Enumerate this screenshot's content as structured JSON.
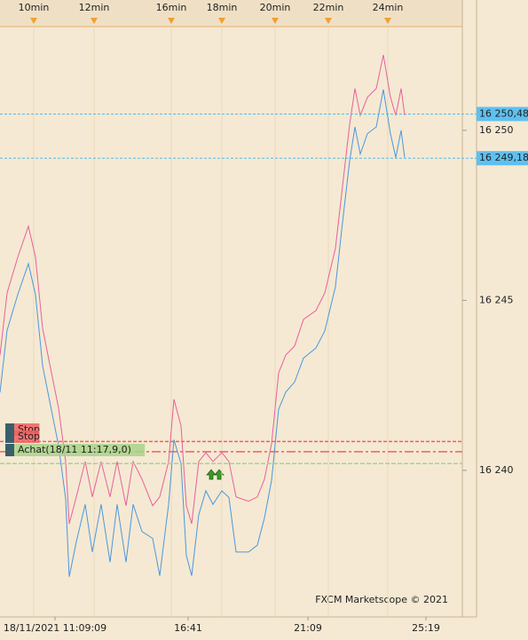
{
  "chart_data": {
    "type": "line",
    "watermark": "FXCM Marketscope © 2021",
    "x": [
      0,
      8,
      20,
      32,
      40,
      48,
      56,
      66,
      74,
      78,
      86,
      96,
      104,
      114,
      124,
      132,
      142,
      150,
      160,
      172,
      180,
      190,
      196,
      204,
      210,
      216,
      224,
      232,
      240,
      250,
      258,
      266,
      280,
      290,
      298,
      306,
      314,
      322,
      332,
      342,
      356,
      366,
      378,
      386,
      394,
      400,
      406,
      414,
      424,
      432,
      440,
      446,
      452,
      456
    ],
    "series": [
      {
        "color": "#e8609a",
        "values": [
          16243.39,
          16245.22,
          16246.27,
          16247.18,
          16246.27,
          16244.18,
          16243.13,
          16241.83,
          16240.26,
          16238.43,
          16239.22,
          16240.26,
          16239.22,
          16240.26,
          16239.22,
          16240.26,
          16238.96,
          16240.26,
          16239.74,
          16238.96,
          16239.22,
          16240.26,
          16242.09,
          16241.31,
          16238.96,
          16238.43,
          16240.26,
          16240.52,
          16240.26,
          16240.52,
          16240.26,
          16239.22,
          16239.09,
          16239.22,
          16239.74,
          16240.78,
          16242.87,
          16243.39,
          16243.66,
          16244.44,
          16244.7,
          16245.22,
          16246.53,
          16248.36,
          16250.18,
          16251.23,
          16250.44,
          16250.97,
          16251.23,
          16252.22,
          16250.97,
          16250.44,
          16251.23,
          16250.44
        ]
      },
      {
        "color": "#4a98e0",
        "values": [
          16242.29,
          16244.12,
          16245.17,
          16246.08,
          16245.17,
          16243.08,
          16242.03,
          16240.73,
          16239.16,
          16236.87,
          16237.9,
          16239.0,
          16237.6,
          16239.0,
          16237.3,
          16239.0,
          16237.3,
          16239.0,
          16238.2,
          16238.0,
          16236.9,
          16239.0,
          16240.9,
          16240.2,
          16237.5,
          16236.9,
          16238.7,
          16239.4,
          16239.0,
          16239.4,
          16239.2,
          16237.6,
          16237.6,
          16237.8,
          16238.6,
          16239.7,
          16241.8,
          16242.3,
          16242.6,
          16243.3,
          16243.6,
          16244.1,
          16245.4,
          16247.3,
          16249.1,
          16250.1,
          16249.3,
          16249.9,
          16250.1,
          16251.2,
          16249.9,
          16249.2,
          16250.0,
          16249.2
        ]
      }
    ],
    "xlim": [
      0,
      521
    ],
    "ylim": [
      16235.69,
      16253.05
    ],
    "yticks": [
      {
        "value": 16240,
        "label": "16 240"
      },
      {
        "value": 16245,
        "label": "16 245"
      },
      {
        "value": 16250,
        "label": "16 250"
      }
    ],
    "xticks": [
      {
        "value": 62,
        "label": "18/11/2021 11:09:09"
      },
      {
        "value": 212,
        "label": "16:41"
      },
      {
        "value": 347,
        "label": "21:09"
      },
      {
        "value": 480,
        "label": "25:19"
      }
    ],
    "top_ticks": [
      {
        "value": 38,
        "label": "10min"
      },
      {
        "value": 106,
        "label": "12min"
      },
      {
        "value": 193,
        "label": "16min"
      },
      {
        "value": 250,
        "label": "18min"
      },
      {
        "value": 310,
        "label": "20min"
      },
      {
        "value": 370,
        "label": "22min"
      },
      {
        "value": 437,
        "label": "24min"
      }
    ],
    "price_levels": [
      {
        "value": 16250.48,
        "label": "16 250,48"
      },
      {
        "value": 16249.18,
        "label": "16 249,18"
      }
    ],
    "orders": [
      {
        "value": 16240.85,
        "label": "Stop",
        "color": "#f06060"
      },
      {
        "value": 16240.55,
        "label": "Stop",
        "color": "#f06060"
      },
      {
        "value": 16240.2,
        "label": "Achat(18/11 11:17,9,0)",
        "color": "#a8d48a"
      }
    ]
  }
}
